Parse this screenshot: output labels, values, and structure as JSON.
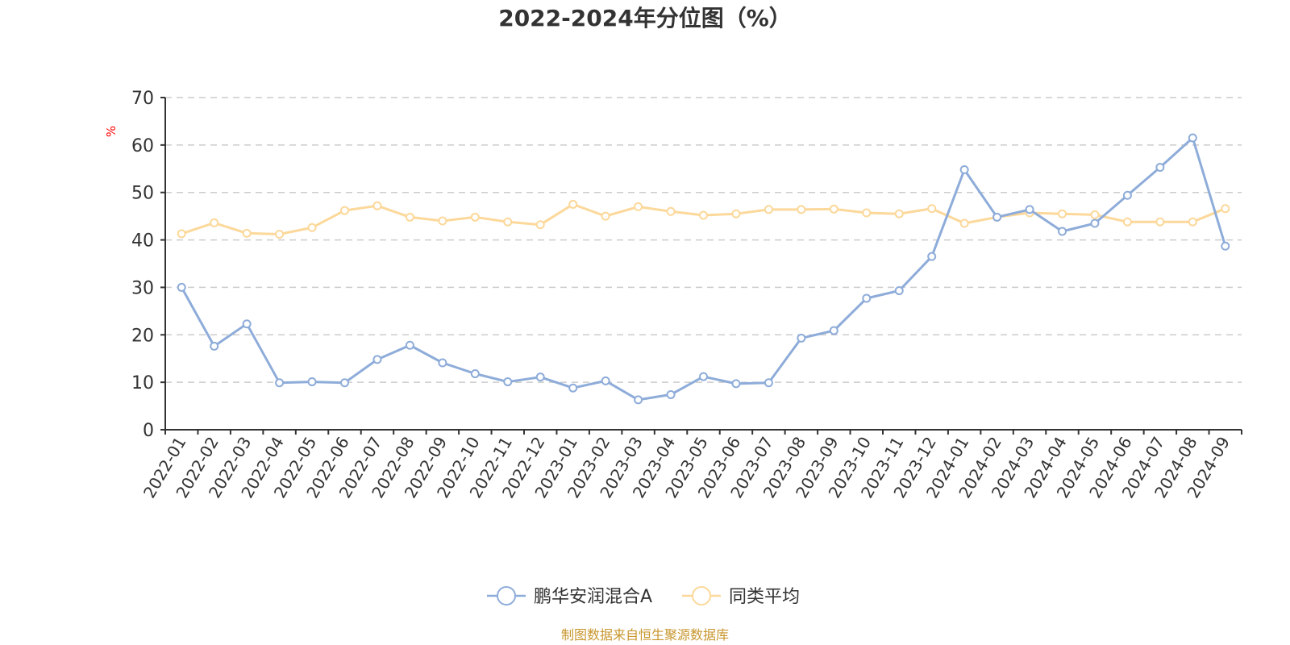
{
  "chart_data": {
    "type": "line",
    "title": "2022-2024年分位图（%）",
    "xlabel": "",
    "ylabel": "%",
    "ylim": [
      0,
      70
    ],
    "yticks": [
      0,
      10,
      20,
      30,
      40,
      50,
      60,
      70
    ],
    "grid": true,
    "legend_position": "bottom-center",
    "categories": [
      "2022-01",
      "2022-02",
      "2022-03",
      "2022-04",
      "2022-05",
      "2022-06",
      "2022-07",
      "2022-08",
      "2022-09",
      "2022-10",
      "2022-11",
      "2022-12",
      "2023-01",
      "2023-02",
      "2023-03",
      "2023-04",
      "2023-05",
      "2023-06",
      "2023-07",
      "2023-08",
      "2023-09",
      "2023-10",
      "2023-11",
      "2023-12",
      "2024-01",
      "2024-02",
      "2024-03",
      "2024-04",
      "2024-05",
      "2024-06",
      "2024-07",
      "2024-08",
      "2024-09"
    ],
    "series": [
      {
        "name": "鹏华安润混合A",
        "color": "#8eacd9",
        "values": [
          30.0,
          17.6,
          22.3,
          9.9,
          10.1,
          9.9,
          14.8,
          17.8,
          14.1,
          11.8,
          10.1,
          11.1,
          8.8,
          10.3,
          6.3,
          7.4,
          11.2,
          9.7,
          9.9,
          19.3,
          20.9,
          27.7,
          29.3,
          36.5,
          54.8,
          44.8,
          46.4,
          41.8,
          43.5,
          49.4,
          55.3,
          61.5,
          38.7
        ]
      },
      {
        "name": "同类平均",
        "color": "#fcd89a",
        "values": [
          41.3,
          43.6,
          41.4,
          41.2,
          42.6,
          46.2,
          47.2,
          44.8,
          44.0,
          44.8,
          43.8,
          43.2,
          47.5,
          45.0,
          47.0,
          46.0,
          45.2,
          45.5,
          46.4,
          46.4,
          46.5,
          45.7,
          45.5,
          46.6,
          43.5,
          44.8,
          45.7,
          45.5,
          45.3,
          43.8,
          43.8,
          43.8,
          46.6
        ]
      }
    ]
  },
  "source_note": "制图数据来自恒生聚源数据库"
}
